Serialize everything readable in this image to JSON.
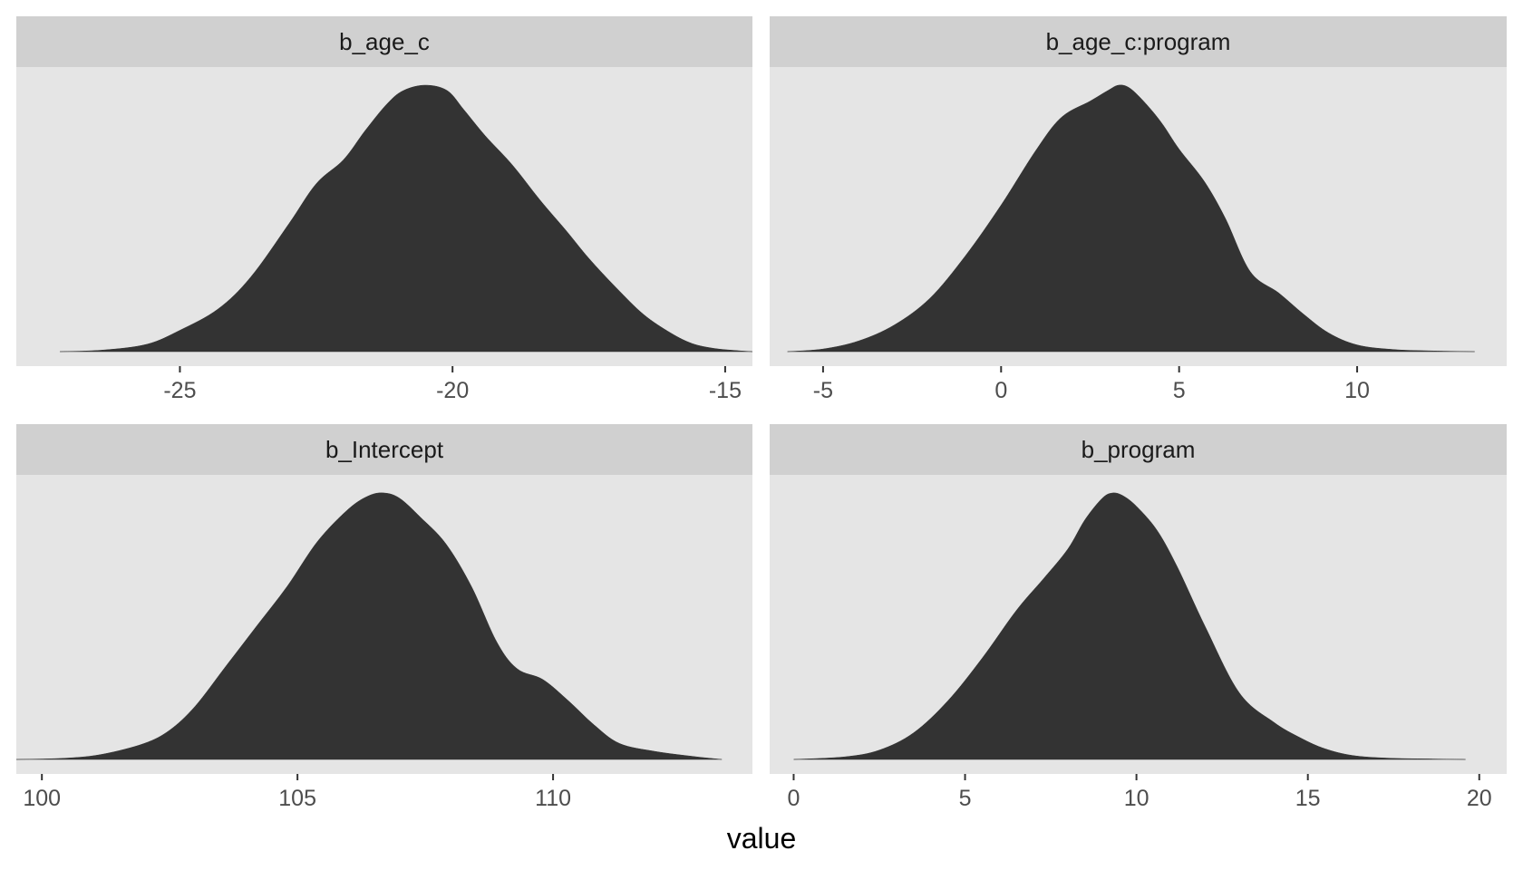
{
  "chart_data": {
    "type": "area",
    "xlabel": "value",
    "ylabel": "",
    "grid": false,
    "panels": [
      {
        "title": "b_age_c",
        "xlim": [
          -28.0,
          -14.5
        ],
        "xticks": [
          -25,
          -20,
          -15
        ],
        "x": [
          -27.2,
          -26.4,
          -25.6,
          -25.0,
          -24.3,
          -23.7,
          -23.0,
          -22.5,
          -22.0,
          -21.6,
          -21.2,
          -20.9,
          -20.5,
          -20.1,
          -19.8,
          -19.4,
          -18.9,
          -18.4,
          -17.9,
          -17.5,
          -17.0,
          -16.5,
          -16.0,
          -15.6,
          -15.2,
          -14.8,
          -14.5
        ],
        "y": [
          0.0,
          0.006,
          0.028,
          0.08,
          0.16,
          0.28,
          0.48,
          0.63,
          0.72,
          0.83,
          0.93,
          0.98,
          1.0,
          0.98,
          0.91,
          0.81,
          0.7,
          0.57,
          0.45,
          0.35,
          0.24,
          0.14,
          0.07,
          0.03,
          0.012,
          0.004,
          0.0
        ]
      },
      {
        "title": "b_age_c:program",
        "xlim": [
          -6.5,
          14.2
        ],
        "xticks": [
          -5,
          0,
          5,
          10
        ],
        "x": [
          -6.0,
          -5.0,
          -4.0,
          -3.0,
          -2.0,
          -1.0,
          0.0,
          1.0,
          1.7,
          2.5,
          3.0,
          3.3,
          3.6,
          4.0,
          4.5,
          5.0,
          5.7,
          6.3,
          7.0,
          7.8,
          8.5,
          9.2,
          10.0,
          11.0,
          12.0,
          13.3
        ],
        "y": [
          0.0,
          0.01,
          0.04,
          0.1,
          0.2,
          0.36,
          0.55,
          0.76,
          0.88,
          0.94,
          0.98,
          1.0,
          0.99,
          0.94,
          0.86,
          0.76,
          0.64,
          0.5,
          0.3,
          0.22,
          0.14,
          0.07,
          0.025,
          0.008,
          0.003,
          0.0
        ]
      },
      {
        "title": "b_Intercept",
        "xlim": [
          99.5,
          113.9
        ],
        "xticks": [
          100,
          105,
          110
        ],
        "x": [
          99.5,
          100.5,
          101.2,
          102.0,
          102.5,
          103.0,
          103.6,
          104.2,
          104.8,
          105.4,
          106.0,
          106.4,
          106.7,
          107.0,
          107.4,
          107.9,
          108.4,
          108.9,
          109.3,
          109.8,
          110.3,
          110.8,
          111.3,
          112.0,
          112.8,
          113.3
        ],
        "y": [
          0.0,
          0.005,
          0.02,
          0.06,
          0.11,
          0.2,
          0.35,
          0.5,
          0.65,
          0.82,
          0.94,
          0.99,
          1.0,
          0.98,
          0.91,
          0.81,
          0.65,
          0.44,
          0.34,
          0.3,
          0.22,
          0.13,
          0.06,
          0.03,
          0.01,
          0.0
        ]
      },
      {
        "title": "b_program",
        "xlim": [
          -0.7,
          20.8
        ],
        "xticks": [
          0,
          5,
          10,
          15,
          20
        ],
        "x": [
          0.0,
          1.5,
          2.5,
          3.5,
          4.5,
          5.5,
          6.5,
          7.3,
          8.0,
          8.5,
          9.0,
          9.3,
          9.6,
          10.0,
          10.6,
          11.2,
          12.0,
          13.0,
          14.0,
          14.8,
          15.5,
          16.3,
          17.3,
          18.5,
          19.6
        ],
        "y": [
          0.0,
          0.01,
          0.035,
          0.1,
          0.22,
          0.38,
          0.56,
          0.68,
          0.79,
          0.9,
          0.98,
          1.0,
          0.99,
          0.95,
          0.86,
          0.72,
          0.5,
          0.25,
          0.14,
          0.08,
          0.04,
          0.015,
          0.005,
          0.002,
          0.0
        ]
      }
    ]
  },
  "colors": {
    "panel_background": "#e5e5e5",
    "strip_background": "#d0d0d0",
    "density_fill": "#333333",
    "tick_text": "#4d4d4d",
    "strip_text": "#1a1a1a"
  }
}
